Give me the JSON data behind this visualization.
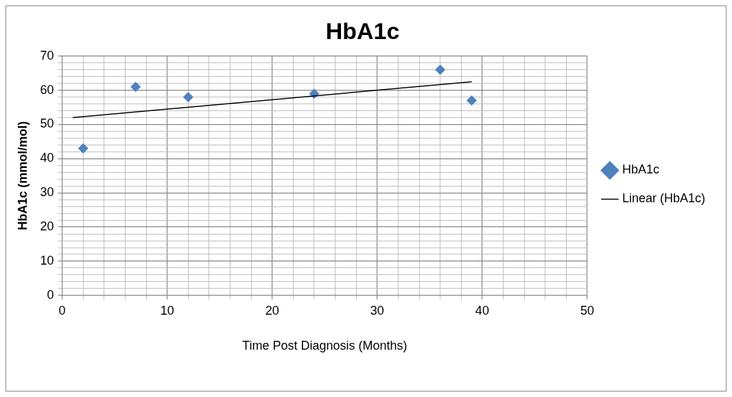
{
  "chart_data": {
    "type": "scatter",
    "title": "HbA1c",
    "xlabel": "Time Post Diagnosis (Months)",
    "ylabel": "HbA1c (mmol/mol)",
    "x": [
      2,
      7,
      12,
      24,
      36,
      39
    ],
    "series": [
      {
        "name": "HbA1c",
        "color": "#4f81bd",
        "values": [
          43,
          61,
          58,
          59,
          66,
          57
        ],
        "marker": "diamond"
      },
      {
        "name": "Linear (HbA1c)",
        "type": "line",
        "color": "#000000",
        "x": [
          1,
          39
        ],
        "values": [
          52,
          62.5
        ],
        "marker": "none"
      }
    ],
    "xlim": [
      0,
      50
    ],
    "ylim": [
      0,
      70
    ],
    "xticks": [
      0,
      {
        "value": 2,
        "label": null
      },
      {
        "value": 4,
        "label": null
      },
      {
        "value": 6,
        "label": null
      },
      {
        "value": 8,
        "label": null
      },
      10,
      {
        "value": 12,
        "label": null
      },
      {
        "value": 14,
        "label": null
      },
      {
        "value": 16,
        "label": null
      },
      {
        "value": 18,
        "label": null
      },
      20,
      {
        "value": 22,
        "label": null
      },
      {
        "value": 24,
        "label": null
      },
      {
        "value": 26,
        "label": null
      },
      {
        "value": 28,
        "label": null
      },
      30,
      {
        "value": 32,
        "label": null
      },
      {
        "value": 34,
        "label": null
      },
      {
        "value": 36,
        "label": null
      },
      {
        "value": 38,
        "label": null
      },
      40,
      {
        "value": 42,
        "label": null
      },
      {
        "value": 44,
        "label": null
      },
      {
        "value": 46,
        "label": null
      },
      {
        "value": 48,
        "label": null
      },
      50
    ],
    "yticks": [
      0,
      {
        "value": 2,
        "label": null
      },
      {
        "value": 4,
        "label": null
      },
      {
        "value": 6,
        "label": null
      },
      {
        "value": 8,
        "label": null
      },
      10,
      {
        "value": 12,
        "label": null
      },
      {
        "value": 14,
        "label": null
      },
      {
        "value": 16,
        "label": null
      },
      {
        "value": 18,
        "label": null
      },
      20,
      {
        "value": 22,
        "label": null
      },
      {
        "value": 24,
        "label": null
      },
      {
        "value": 26,
        "label": null
      },
      {
        "value": 28,
        "label": null
      },
      30,
      {
        "value": 32,
        "label": null
      },
      {
        "value": 34,
        "label": null
      },
      {
        "value": 36,
        "label": null
      },
      {
        "value": 38,
        "label": null
      },
      40,
      {
        "value": 42,
        "label": null
      },
      {
        "value": 44,
        "label": null
      },
      {
        "value": 46,
        "label": null
      },
      {
        "value": 48,
        "label": null
      },
      50,
      {
        "value": 52,
        "label": null
      },
      {
        "value": 54,
        "label": null
      },
      {
        "value": 56,
        "label": null
      },
      {
        "value": 58,
        "label": null
      },
      60,
      {
        "value": 62,
        "label": null
      },
      {
        "value": 64,
        "label": null
      },
      {
        "value": 66,
        "label": null
      },
      {
        "value": 68,
        "label": null
      },
      70
    ],
    "grid": true,
    "legend": "right"
  }
}
